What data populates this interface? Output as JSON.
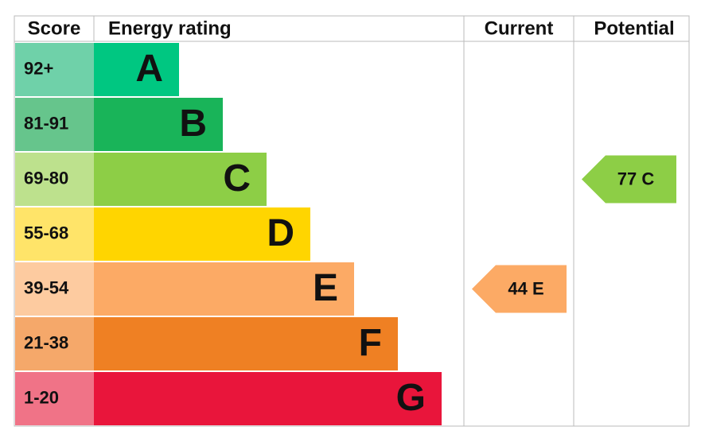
{
  "header": {
    "score": "Score",
    "rating": "Energy rating",
    "current": "Current",
    "potential": "Potential"
  },
  "bands": [
    {
      "score": "92+",
      "letter": "A",
      "color": "#00c781",
      "tint": "#6fd1a9"
    },
    {
      "score": "81-91",
      "letter": "B",
      "color": "#19b459",
      "tint": "#66c58c"
    },
    {
      "score": "69-80",
      "letter": "C",
      "color": "#8dce46",
      "tint": "#bde18d"
    },
    {
      "score": "55-68",
      "letter": "D",
      "color": "#ffd500",
      "tint": "#ffe469"
    },
    {
      "score": "39-54",
      "letter": "E",
      "color": "#fcaa65",
      "tint": "#fdcba0"
    },
    {
      "score": "21-38",
      "letter": "F",
      "color": "#ef8023",
      "tint": "#f5a86a"
    },
    {
      "score": "1-20",
      "letter": "G",
      "color": "#e9153b",
      "tint": "#f07387"
    }
  ],
  "current": "44 E",
  "potential": "77 C"
}
